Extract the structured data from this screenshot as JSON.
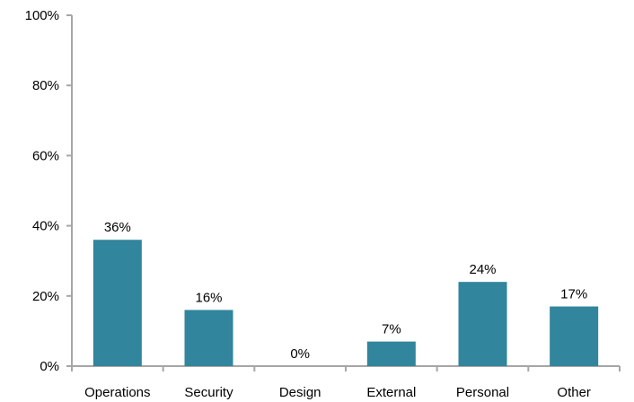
{
  "chart_data": {
    "type": "bar",
    "categories": [
      "Operations",
      "Security",
      "Design",
      "External",
      "Personal",
      "Other"
    ],
    "values": [
      36,
      16,
      0,
      7,
      24,
      17
    ],
    "data_labels": [
      "36%",
      "16%",
      "0%",
      "7%",
      "24%",
      "17%"
    ],
    "ylim": [
      0,
      100
    ],
    "yticks": [
      0,
      20,
      40,
      60,
      80,
      100
    ],
    "ytick_labels": [
      "0%",
      "20%",
      "40%",
      "60%",
      "80%",
      "100%"
    ],
    "grid": false,
    "legend": "none",
    "bar_color": "#31859c",
    "axis_color": "#a6a6a6"
  }
}
